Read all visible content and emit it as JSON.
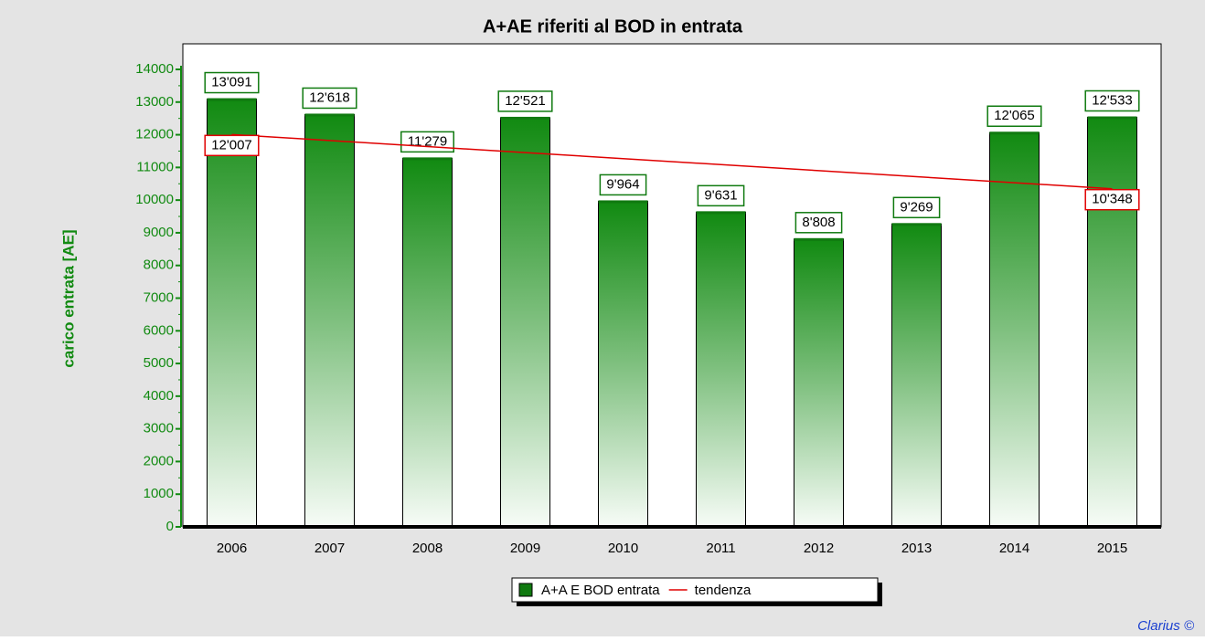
{
  "chart_data": {
    "type": "bar",
    "title": "A+AE riferiti al BOD in entrata",
    "y_label": "carico entrata [AE]",
    "categories": [
      "2006",
      "2007",
      "2008",
      "2009",
      "2010",
      "2011",
      "2012",
      "2013",
      "2014",
      "2015"
    ],
    "series": [
      {
        "name": "A+A E BOD entrata",
        "color": "#107a10",
        "type": "bar",
        "values": [
          13091,
          12618,
          11279,
          12521,
          9964,
          9631,
          8808,
          9269,
          12065,
          12533
        ],
        "value_labels": [
          "13'091",
          "12'618",
          "11'279",
          "12'521",
          "9'964",
          "9'631",
          "8'808",
          "9'269",
          "12'065",
          "12'533"
        ]
      },
      {
        "name": "tendenza",
        "color": "#e00000",
        "type": "line",
        "values": [
          12007,
          11823,
          11638,
          11454,
          11270,
          11086,
          10901,
          10717,
          10533,
          10348
        ],
        "value_labels": [
          "12'007",
          null,
          null,
          null,
          null,
          null,
          null,
          null,
          null,
          "10'348"
        ]
      }
    ],
    "ylim": [
      0,
      14000
    ],
    "yticks": [
      0,
      1000,
      2000,
      3000,
      4000,
      5000,
      6000,
      7000,
      8000,
      9000,
      10000,
      11000,
      12000,
      13000,
      14000
    ],
    "legend": "bottom",
    "credit": "Clarius ©"
  }
}
